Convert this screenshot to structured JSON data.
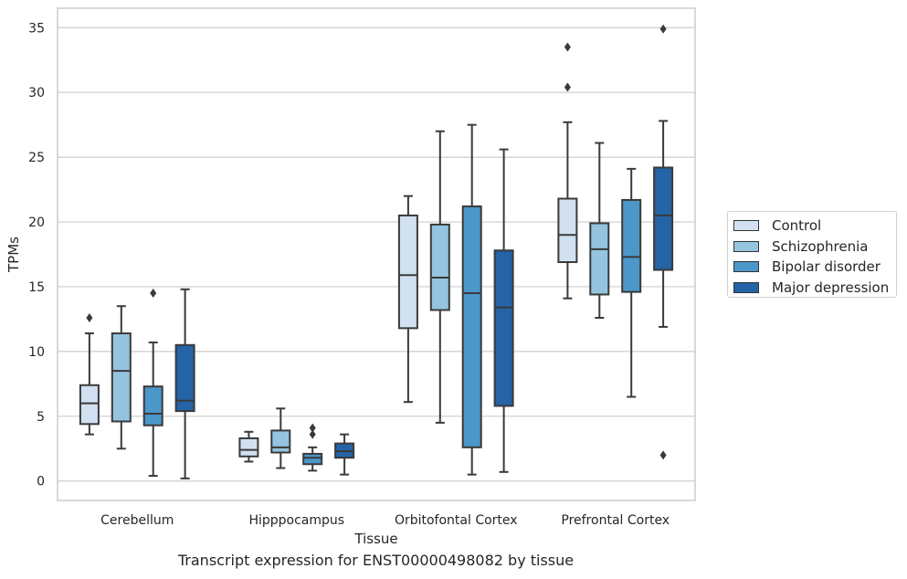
{
  "chart_data": {
    "type": "box",
    "xlabel": "Tissue",
    "ylabel": "TPMs",
    "caption": "Transcript expression for ENST00000498082 by tissue",
    "categories": [
      "Cerebellum",
      "Hipppocampus",
      "Orbitofontal Cortex",
      "Prefrontal Cortex"
    ],
    "ylim": [
      -1.5,
      36.5
    ],
    "yticks": [
      0,
      5,
      10,
      15,
      20,
      25,
      30,
      35
    ],
    "grid": "horizontal",
    "legend_position": "right",
    "series": [
      {
        "name": "Control",
        "color": "#d1e1f1",
        "boxes": [
          {
            "whisker_low": 3.6,
            "q1": 4.4,
            "median": 6.0,
            "q3": 7.4,
            "whisker_high": 11.4,
            "outliers": [
              12.6
            ]
          },
          {
            "whisker_low": 1.5,
            "q1": 1.9,
            "median": 2.4,
            "q3": 3.3,
            "whisker_high": 3.8,
            "outliers": []
          },
          {
            "whisker_low": 6.1,
            "q1": 11.8,
            "median": 15.9,
            "q3": 20.5,
            "whisker_high": 22.0,
            "outliers": []
          },
          {
            "whisker_low": 14.1,
            "q1": 16.9,
            "median": 19.0,
            "q3": 21.8,
            "whisker_high": 27.7,
            "outliers": [
              30.4,
              33.5
            ]
          }
        ]
      },
      {
        "name": "Schizophrenia",
        "color": "#94c4df",
        "boxes": [
          {
            "whisker_low": 2.5,
            "q1": 4.6,
            "median": 8.5,
            "q3": 11.4,
            "whisker_high": 13.5,
            "outliers": []
          },
          {
            "whisker_low": 1.0,
            "q1": 2.2,
            "median": 2.6,
            "q3": 3.9,
            "whisker_high": 5.6,
            "outliers": []
          },
          {
            "whisker_low": 4.5,
            "q1": 13.2,
            "median": 15.7,
            "q3": 19.8,
            "whisker_high": 27.0,
            "outliers": []
          },
          {
            "whisker_low": 12.6,
            "q1": 14.4,
            "median": 17.9,
            "q3": 19.9,
            "whisker_high": 26.1,
            "outliers": []
          }
        ]
      },
      {
        "name": "Bipolar disorder",
        "color": "#4b97c9",
        "boxes": [
          {
            "whisker_low": 0.4,
            "q1": 4.3,
            "median": 5.2,
            "q3": 7.3,
            "whisker_high": 10.7,
            "outliers": [
              14.5
            ]
          },
          {
            "whisker_low": 0.8,
            "q1": 1.3,
            "median": 1.8,
            "q3": 2.1,
            "whisker_high": 2.6,
            "outliers": [
              3.6,
              4.1
            ]
          },
          {
            "whisker_low": 0.5,
            "q1": 2.6,
            "median": 14.5,
            "q3": 21.2,
            "whisker_high": 27.5,
            "outliers": []
          },
          {
            "whisker_low": 6.5,
            "q1": 14.6,
            "median": 17.3,
            "q3": 21.7,
            "whisker_high": 24.1,
            "outliers": []
          }
        ]
      },
      {
        "name": "Major depression",
        "color": "#2463a6",
        "boxes": [
          {
            "whisker_low": 0.2,
            "q1": 5.4,
            "median": 6.2,
            "q3": 10.5,
            "whisker_high": 14.8,
            "outliers": []
          },
          {
            "whisker_low": 0.5,
            "q1": 1.8,
            "median": 2.3,
            "q3": 2.9,
            "whisker_high": 3.6,
            "outliers": []
          },
          {
            "whisker_low": 0.7,
            "q1": 5.8,
            "median": 13.4,
            "q3": 17.8,
            "whisker_high": 25.6,
            "outliers": []
          },
          {
            "whisker_low": 11.9,
            "q1": 16.3,
            "median": 20.5,
            "q3": 24.2,
            "whisker_high": 27.8,
            "outliers": [
              2.0,
              34.9
            ]
          }
        ]
      }
    ]
  }
}
